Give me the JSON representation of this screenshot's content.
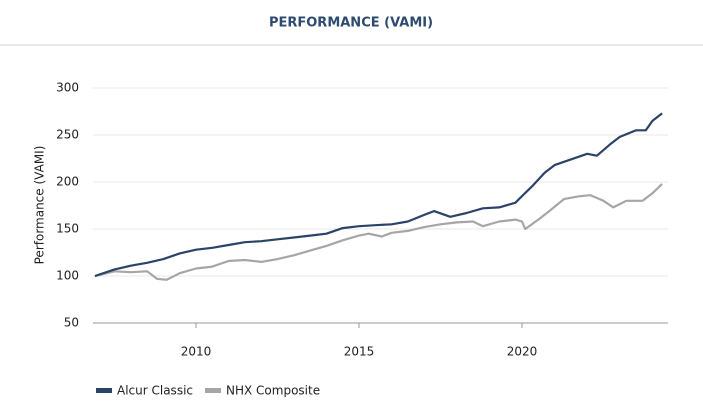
{
  "chart_data": {
    "type": "line",
    "title": "PERFORMANCE (VAMI)",
    "y_label": "Performance (VAMI)",
    "xlim": [
      2006.84,
      2024.48
    ],
    "xticks": [
      2010,
      2015,
      2020
    ],
    "ylim": [
      50,
      300
    ],
    "yticks": [
      50,
      100,
      150,
      200,
      250,
      300
    ],
    "grid": true,
    "legend": "bottom-left",
    "series": [
      {
        "name": "Alcur Classic",
        "color": "#2c4369",
        "x": [
          2006.9,
          2007.5,
          2008,
          2008.5,
          2009,
          2009.5,
          2010,
          2010.5,
          2011,
          2011.5,
          2012,
          2012.5,
          2013,
          2013.5,
          2014,
          2014.5,
          2015,
          2015.5,
          2016,
          2016.5,
          2017,
          2017.3,
          2017.8,
          2018.3,
          2018.8,
          2019.3,
          2019.8,
          2020,
          2020.3,
          2020.7,
          2021,
          2021.5,
          2022,
          2022.3,
          2022.7,
          2023,
          2023.5,
          2023.8,
          2024,
          2024.3
        ],
        "values": [
          100,
          107,
          111,
          114,
          118,
          124,
          128,
          130,
          133,
          136,
          137,
          139,
          141,
          143,
          145,
          151,
          153,
          154,
          155,
          158,
          165,
          169,
          163,
          167,
          172,
          173,
          178,
          185,
          195,
          210,
          218,
          224,
          230,
          228,
          240,
          248,
          255,
          255,
          265,
          273
        ]
      },
      {
        "name": "NHX Composite",
        "color": "#a6a6a6",
        "x": [
          2006.9,
          2007.5,
          2008,
          2008.5,
          2008.8,
          2009.1,
          2009.5,
          2010,
          2010.5,
          2011,
          2011.5,
          2012,
          2012.5,
          2013,
          2013.5,
          2014,
          2014.5,
          2015,
          2015.3,
          2015.7,
          2016,
          2016.5,
          2017,
          2017.5,
          2018,
          2018.5,
          2018.8,
          2019.3,
          2019.8,
          2020,
          2020.1,
          2020.5,
          2020.8,
          2021.3,
          2021.8,
          2022.1,
          2022.5,
          2022.8,
          2023.2,
          2023.7,
          2024,
          2024.3
        ],
        "values": [
          100,
          105,
          104,
          105,
          97,
          96,
          103,
          108,
          110,
          116,
          117,
          115,
          118,
          122,
          127,
          132,
          138,
          143,
          145,
          142,
          146,
          148,
          152,
          155,
          157,
          158,
          153,
          158,
          160,
          158,
          150,
          160,
          168,
          182,
          185,
          186,
          180,
          173,
          180,
          180,
          188,
          198
        ]
      }
    ]
  }
}
